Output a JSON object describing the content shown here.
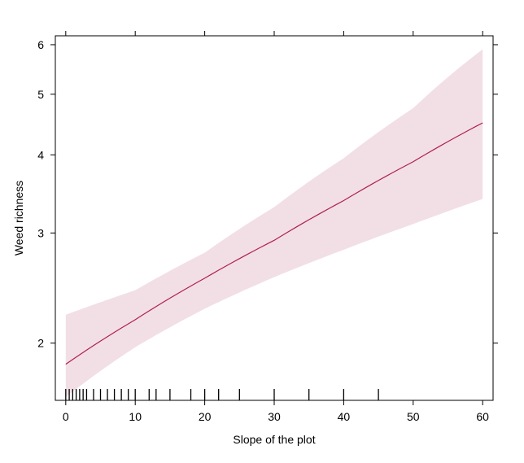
{
  "chart_data": {
    "type": "line",
    "title": "",
    "xlabel": "Slope of the plot",
    "ylabel": "Weed richness",
    "y_scale": "log",
    "xlim": [
      -1.5,
      61.5
    ],
    "ylim": [
      1.62,
      6.2
    ],
    "x_ticks": [
      0,
      10,
      20,
      30,
      40,
      50,
      60
    ],
    "y_ticks": [
      2,
      3,
      4,
      5,
      6
    ],
    "grid": false,
    "legend": "none",
    "colors": {
      "line": "#b0204a",
      "band": "#f2dfe6",
      "axis": "#000000"
    },
    "series": [
      {
        "x": [
          0,
          10,
          20,
          30,
          40,
          50,
          60
        ],
        "fit": [
          1.85,
          2.18,
          2.54,
          2.92,
          3.38,
          3.9,
          4.5
        ],
        "lower": [
          1.64,
          1.97,
          2.27,
          2.55,
          2.82,
          3.1,
          3.4
        ],
        "upper": [
          2.22,
          2.43,
          2.79,
          3.3,
          3.95,
          4.75,
          5.9
        ]
      }
    ],
    "rug_x": [
      0,
      0.5,
      1,
      1.5,
      2,
      2.5,
      3,
      4,
      5,
      6,
      7,
      8,
      9,
      10,
      12,
      13,
      15,
      18,
      20,
      22,
      25,
      30,
      35,
      40,
      45
    ]
  }
}
